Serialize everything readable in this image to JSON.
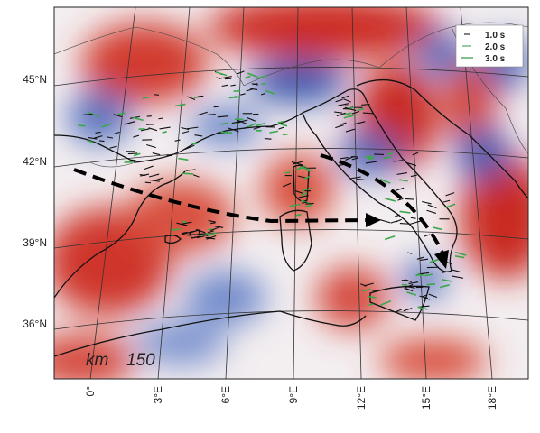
{
  "map": {
    "latitude_labels": [
      "45°N",
      "42°N",
      "39°N",
      "36°N"
    ],
    "longitude_labels": [
      "0°",
      "3°E",
      "6°E",
      "9°E",
      "12°E",
      "15°E",
      "18°E"
    ],
    "legend": [
      "1.0 s",
      "2.0 s",
      "3.0 s"
    ],
    "scale": {
      "unit": "km",
      "value": "150"
    }
  }
}
